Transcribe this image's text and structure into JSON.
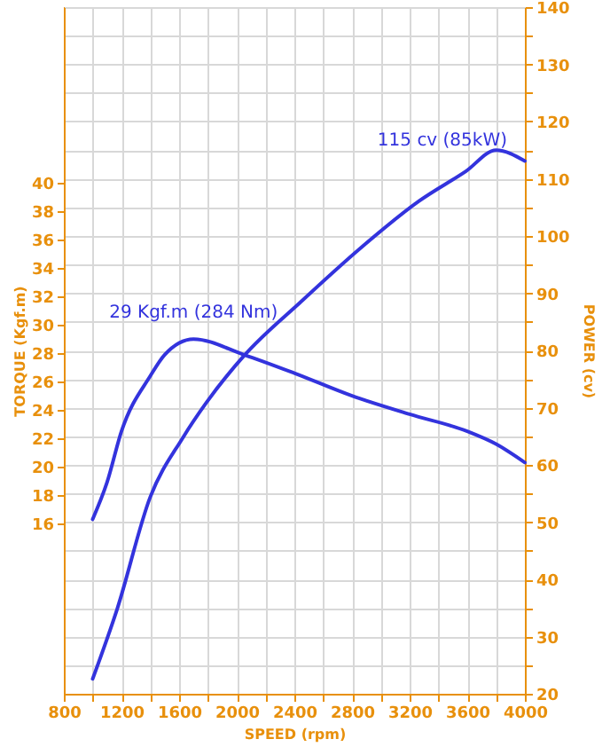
{
  "chart_data": {
    "type": "line",
    "xlabel": "SPEED (rpm)",
    "ylabel": "TORQUE (Kgf.m)",
    "y2label": "POWER (cv)",
    "xlim": [
      800,
      4000
    ],
    "xticks": [
      800,
      {
        "value": 1000,
        "label": null
      },
      1200,
      {
        "value": 1400,
        "label": null
      },
      1600,
      {
        "value": 1800,
        "label": null
      },
      2000,
      {
        "value": 2200,
        "label": null
      },
      2400,
      {
        "value": 2600,
        "label": null
      },
      2800,
      {
        "value": 3000,
        "label": null
      },
      3200,
      {
        "value": 3400,
        "label": null
      },
      3600,
      {
        "value": 3800,
        "label": null
      },
      4000
    ],
    "ylim": [
      4,
      52.4
    ],
    "yticks": [
      16,
      18,
      20,
      22,
      24,
      26,
      28,
      30,
      32,
      34,
      36,
      38,
      40
    ],
    "y2lim": [
      20,
      140
    ],
    "y2ticks": [
      20,
      {
        "value": 25,
        "label": null
      },
      30,
      {
        "value": 35,
        "label": null
      },
      40,
      {
        "value": 45,
        "label": null
      },
      50,
      {
        "value": 55,
        "label": null
      },
      60,
      {
        "value": 65,
        "label": null
      },
      70,
      {
        "value": 75,
        "label": null
      },
      80,
      {
        "value": 85,
        "label": null
      },
      90,
      {
        "value": 95,
        "label": null
      },
      100,
      {
        "value": 105,
        "label": null
      },
      110,
      {
        "value": 115,
        "label": null
      },
      120,
      {
        "value": 125,
        "label": null
      },
      130,
      {
        "value": 135,
        "label": null
      },
      140
    ],
    "grid": true,
    "series": [
      {
        "color": "#3333dd",
        "x": [
          1000,
          1100,
          1200,
          1400,
          1500,
          1700,
          2050,
          2400,
          2800,
          3200,
          3600,
          3800,
          4000
        ],
        "values": [
          16.3,
          18.9,
          22.5,
          26.4,
          27.9,
          29,
          27.9,
          26.6,
          25.0,
          23.7,
          22.5,
          21.6,
          20.3
        ]
      },
      {
        "color": "#3333dd",
        "axis": "y2",
        "x": [
          1000,
          1170,
          1400,
          1625,
          1790,
          2055,
          2445,
          2855,
          3265,
          3590,
          3800,
          4000
        ],
        "values": [
          22.6,
          34.8,
          54.4,
          64.7,
          70.9,
          79.2,
          88.5,
          97.8,
          106.1,
          111.3,
          115,
          113.1
        ]
      }
    ],
    "annotations": [
      {
        "text": "29 Kgf.m (284 Nm)",
        "x": 1700,
        "y": 29
      },
      "115 cv (85kW)"
    ]
  }
}
